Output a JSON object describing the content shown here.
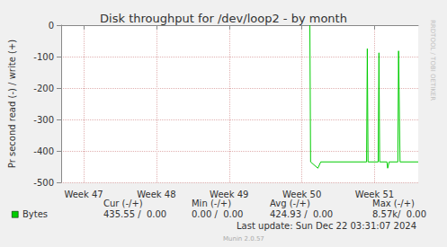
{
  "chart_data": {
    "type": "line",
    "title": "Disk throughput for /dev/loop2 - by month",
    "ylabel": "Pr second read (-) / write (+)",
    "x": [
      50.11,
      50.12,
      50.22,
      50.26,
      50.89,
      50.9,
      50.91,
      51.05,
      51.06,
      51.07,
      51.17,
      51.18,
      51.2,
      51.32,
      51.33,
      51.35,
      51.6
    ],
    "series": [
      {
        "name": "Bytes",
        "color": "#00cc00",
        "values": [
          0,
          -435,
          -455,
          -435,
          -435,
          -75,
          -435,
          -435,
          -88,
          -435,
          -435,
          -455,
          -435,
          -435,
          -82,
          -435,
          -435
        ]
      }
    ],
    "xlim": [
      46.69,
      51.6
    ],
    "xticks": [
      {
        "value": 47,
        "label": "Week 47"
      },
      {
        "value": 48,
        "label": "Week 48"
      },
      {
        "value": 49,
        "label": "Week 49"
      },
      {
        "value": 50,
        "label": "Week 50"
      },
      {
        "value": 51,
        "label": "Week 51"
      }
    ],
    "ylim": [
      -500,
      0
    ],
    "yticks": [
      -500,
      -400,
      -300,
      -200,
      -100,
      0
    ],
    "grid": true,
    "legend_table": {
      "columns": [
        "Cur (-/+)",
        "Min (-/+)",
        "Avg (-/+)",
        "Max (-/+)"
      ],
      "rows": [
        [
          "435.55 /  0.00",
          "0.00 /  0.00",
          "424.93 /  0.00",
          "8.57k/  0.00"
        ]
      ]
    },
    "last_update": "Last update: Sun Dec 22 03:31:07 2024",
    "footer": "Munin 2.0.57",
    "watermark": "RRDTOOL / TOBI OETIKER"
  }
}
